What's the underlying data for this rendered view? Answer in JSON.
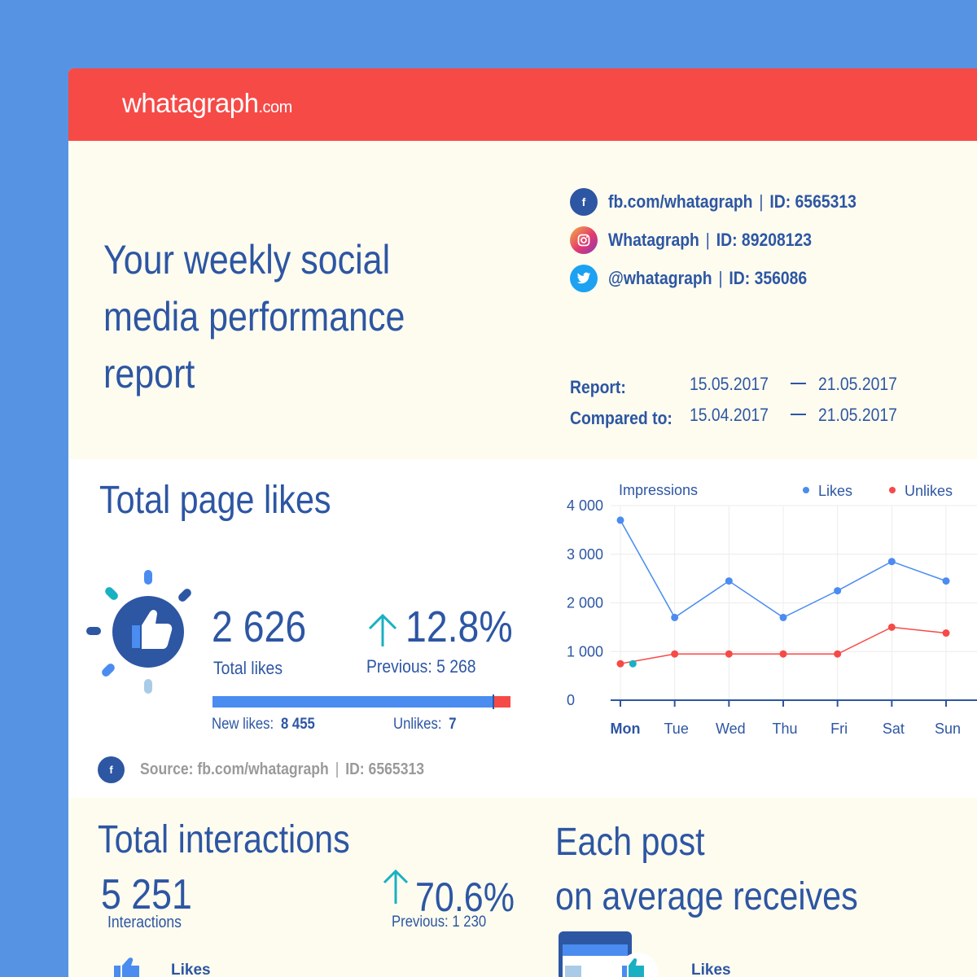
{
  "brand": {
    "name": "whatagraph",
    "suffix": ".com"
  },
  "header": {
    "title": "Your weekly social media performance report",
    "accounts": [
      {
        "icon": "facebook-icon",
        "glyph": "f",
        "text": "fb.com/whatagraph",
        "id": "ID: 6565313"
      },
      {
        "icon": "instagram-icon",
        "glyph": "◎",
        "text": "Whatagraph",
        "id": "ID: 89208123"
      },
      {
        "icon": "twitter-icon",
        "glyph": "🐦",
        "text": "@whatagraph",
        "id": "ID: 356086"
      }
    ],
    "report": {
      "label": "Report:",
      "from": "15.05.2017",
      "to": "21.05.2017"
    },
    "compared": {
      "label": "Compared to:",
      "from": "15.04.2017",
      "to": "21.05.2017"
    }
  },
  "page_likes": {
    "title": "Total page likes",
    "total": "2 626",
    "total_label": "Total likes",
    "change": "12.8%",
    "previous": "Previous: 5 268",
    "new_likes_label": "New likes:",
    "new_likes": "8 455",
    "unlikes_label": "Unlikes:",
    "unlikes": "7",
    "new_likes_fraction": 0.94
  },
  "source": {
    "text": "Source: fb.com/whatagraph",
    "id": "ID: 6565313"
  },
  "chart_data": {
    "type": "line",
    "title": "Impressions",
    "categories": [
      "Mon",
      "Tue",
      "Wed",
      "Thu",
      "Fri",
      "Sat",
      "Sun"
    ],
    "highlight_category": "Mon",
    "yticks": [
      "0",
      "1 000",
      "2 000",
      "3 000",
      "4 000"
    ],
    "ylim": [
      0,
      4000
    ],
    "legend_position": "top-right",
    "series": [
      {
        "name": "Likes",
        "color": "#4a8cf0",
        "values": [
          3700,
          1700,
          2450,
          1700,
          2250,
          2850,
          2450
        ]
      },
      {
        "name": "Unlikes",
        "color": "#f64a47",
        "values": [
          750,
          950,
          950,
          950,
          950,
          1500,
          1380
        ]
      }
    ],
    "extra_point": {
      "x": 0.23,
      "y": 750,
      "color": "#1ab0c3"
    }
  },
  "interactions": {
    "title": "Total interactions",
    "total": "5 251",
    "total_label": "Interactions",
    "change": "70.6%",
    "previous": "Previous: 1 230",
    "likes_label": "Likes"
  },
  "each_post": {
    "title_line1": "Each post",
    "title_line2": "on average receives",
    "likes_label": "Likes"
  },
  "colors": {
    "background": "#5694e3",
    "header": "#f64a47",
    "text": "#2d56a3",
    "accent_arrow": "#1ab0c3"
  }
}
